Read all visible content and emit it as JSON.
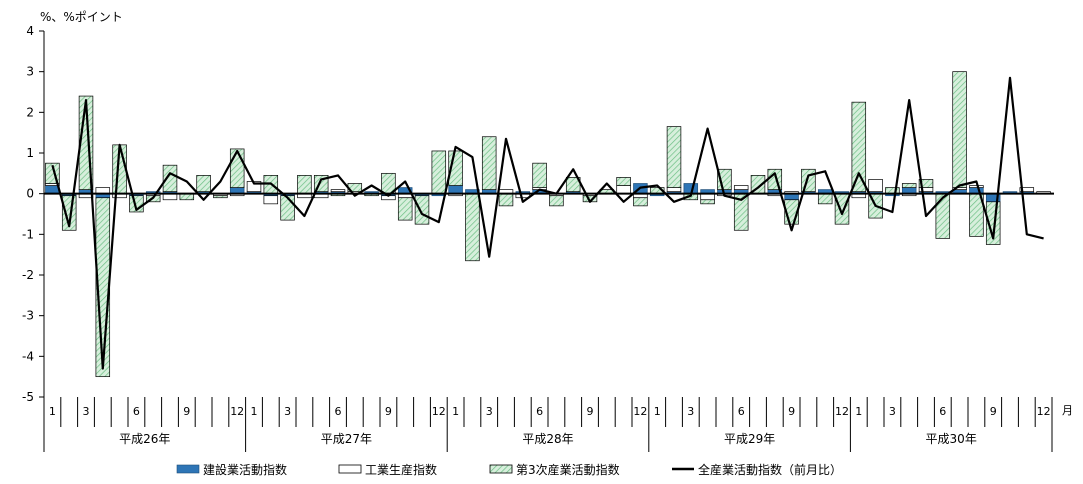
{
  "chart_data": {
    "type": "bar",
    "y_unit_label": "%、%ポイント",
    "x_unit_label": "月",
    "ylim": [
      -5,
      4
    ],
    "yticks": [
      "4",
      "3",
      "2",
      "1",
      "0",
      "-1",
      "-2",
      "-3",
      "-4",
      "-5"
    ],
    "month_tick_labels": [
      "1",
      "3",
      "6",
      "9",
      "12"
    ],
    "years": [
      "平成26年",
      "平成27年",
      "平成28年",
      "平成29年",
      "平成30年"
    ],
    "months": [
      "H26-1",
      "H26-2",
      "H26-3",
      "H26-4",
      "H26-5",
      "H26-6",
      "H26-7",
      "H26-8",
      "H26-9",
      "H26-10",
      "H26-11",
      "H26-12",
      "H27-1",
      "H27-2",
      "H27-3",
      "H27-4",
      "H27-5",
      "H27-6",
      "H27-7",
      "H27-8",
      "H27-9",
      "H27-10",
      "H27-11",
      "H27-12",
      "H28-1",
      "H28-2",
      "H28-3",
      "H28-4",
      "H28-5",
      "H28-6",
      "H28-7",
      "H28-8",
      "H28-9",
      "H28-10",
      "H28-11",
      "H28-12",
      "H29-1",
      "H29-2",
      "H29-3",
      "H29-4",
      "H29-5",
      "H29-6",
      "H29-7",
      "H29-8",
      "H29-9",
      "H29-10",
      "H29-11",
      "H29-12",
      "H30-1",
      "H30-2",
      "H30-3",
      "H30-4",
      "H30-5",
      "H30-6",
      "H30-7",
      "H30-8",
      "H30-9",
      "H30-10",
      "H30-11",
      "H30-12"
    ],
    "series": [
      {
        "name": "建設業活動指数",
        "kind": "bar",
        "color": "#2e75b6",
        "values": [
          0.2,
          -0.05,
          0.1,
          -0.1,
          0.0,
          -0.05,
          0.05,
          0.05,
          0.0,
          0.05,
          0.0,
          0.15,
          0.05,
          -0.05,
          -0.05,
          0.0,
          0.05,
          0.05,
          0.0,
          0.05,
          -0.05,
          0.15,
          -0.05,
          -0.05,
          0.2,
          0.1,
          0.1,
          0.0,
          0.05,
          0.1,
          0.0,
          0.05,
          0.0,
          0.0,
          0.0,
          0.25,
          -0.05,
          0.05,
          0.25,
          0.1,
          0.1,
          0.1,
          0.0,
          0.1,
          -0.15,
          0.05,
          0.1,
          0.05,
          0.05,
          0.05,
          -0.05,
          0.15,
          0.05,
          0.05,
          0.1,
          0.15,
          -0.2,
          0.05,
          0.05,
          0.0
        ]
      },
      {
        "name": "工業生産指数",
        "kind": "bar",
        "color": "#ffffff",
        "values": [
          0.05,
          0.0,
          -0.1,
          0.15,
          -0.1,
          0.0,
          -0.05,
          -0.15,
          0.0,
          0.0,
          -0.05,
          -0.05,
          0.25,
          -0.2,
          0.0,
          -0.1,
          -0.1,
          0.05,
          0.05,
          0.0,
          -0.1,
          -0.1,
          0.0,
          0.0,
          -0.05,
          0.0,
          0.0,
          0.1,
          -0.1,
          0.05,
          -0.05,
          0.0,
          -0.05,
          0.0,
          0.2,
          -0.1,
          0.0,
          0.1,
          0.0,
          -0.15,
          -0.05,
          0.1,
          0.0,
          -0.05,
          0.05,
          0.0,
          0.0,
          0.0,
          -0.1,
          0.3,
          0.0,
          -0.05,
          0.1,
          0.0,
          0.05,
          0.05,
          0.0,
          0.0,
          0.1,
          0.05
        ]
      },
      {
        "name": "第3次産業活動指数",
        "kind": "bar",
        "color": "#c7e6cf",
        "values": [
          0.5,
          -0.85,
          2.3,
          -4.4,
          1.2,
          -0.4,
          -0.15,
          0.65,
          -0.15,
          0.4,
          -0.05,
          0.95,
          0.0,
          0.45,
          -0.6,
          0.45,
          0.4,
          -0.05,
          0.2,
          -0.05,
          0.5,
          -0.55,
          -0.7,
          1.05,
          0.85,
          -1.65,
          1.3,
          -0.3,
          0.0,
          0.6,
          -0.25,
          0.35,
          -0.15,
          0.1,
          0.2,
          -0.2,
          0.15,
          1.5,
          -0.15,
          -0.1,
          0.5,
          -0.9,
          0.45,
          0.5,
          -0.6,
          0.55,
          -0.25,
          -0.75,
          2.2,
          -0.6,
          0.15,
          0.1,
          0.2,
          -1.1,
          2.85,
          -1.05,
          -1.05,
          0.0,
          0.0,
          0.0
        ]
      },
      {
        "name": "全産業活動指数（前月比）",
        "kind": "line",
        "color": "#000000",
        "values": [
          0.7,
          -0.8,
          2.3,
          -4.3,
          1.2,
          -0.4,
          -0.1,
          0.5,
          0.3,
          -0.15,
          0.3,
          1.05,
          0.25,
          0.25,
          -0.1,
          -0.55,
          0.35,
          0.45,
          -0.05,
          0.2,
          -0.05,
          0.3,
          -0.5,
          -0.7,
          1.15,
          0.9,
          -1.55,
          1.35,
          -0.2,
          0.1,
          0.0,
          0.6,
          -0.2,
          0.25,
          -0.2,
          0.15,
          0.2,
          -0.2,
          -0.05,
          1.6,
          -0.05,
          -0.15,
          0.15,
          0.5,
          -0.9,
          0.45,
          0.55,
          -0.5,
          0.5,
          -0.3,
          -0.45,
          2.3,
          -0.55,
          -0.1,
          0.2,
          0.3,
          -1.1,
          2.85,
          -1.0,
          -1.1
        ]
      }
    ]
  }
}
